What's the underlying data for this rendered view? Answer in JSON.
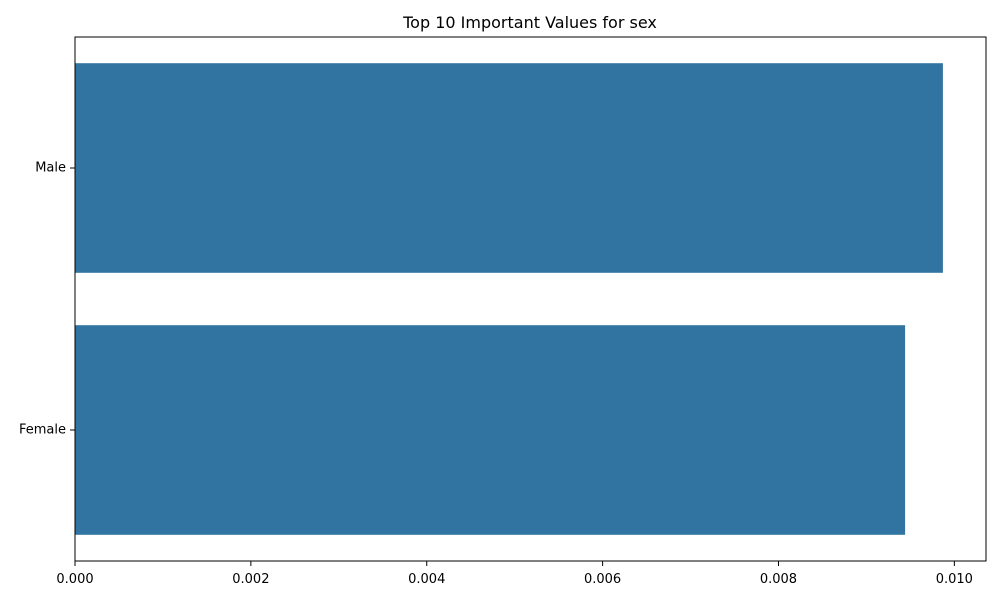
{
  "chart_data": {
    "type": "bar",
    "orientation": "horizontal",
    "title": "Top 10 Important Values for sex",
    "xlabel": "",
    "ylabel": "",
    "categories": [
      "Male",
      "Female"
    ],
    "values": [
      0.00987,
      0.00944
    ],
    "xlim": [
      0,
      0.01036
    ],
    "xticks": [
      0,
      0.002,
      0.004,
      0.006,
      0.008,
      0.01
    ],
    "xtick_labels": [
      "0.000",
      "0.002",
      "0.004",
      "0.006",
      "0.008",
      "0.010"
    ],
    "bar_color": "#3274a1",
    "grid": false,
    "legend": "none"
  }
}
